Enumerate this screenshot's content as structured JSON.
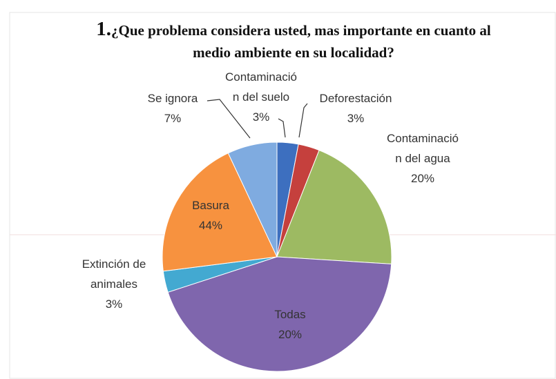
{
  "chart_data": {
    "type": "pie",
    "title_number": "1.",
    "title": "¿Que problema considera usted, mas importante en cuanto al medio ambiente en su localidad?",
    "categories": [
      "Contaminación del suelo",
      "Deforestación",
      "Contaminación del agua",
      "Basura",
      "Extinción de animales",
      "Todas",
      "Se ignora"
    ],
    "values": [
      3,
      3,
      20,
      44,
      3,
      20,
      7
    ],
    "value_labels": [
      "3%",
      "3%",
      "20%",
      "44%",
      "3%",
      "20%",
      "7%"
    ],
    "colors": [
      "#3d6fbf",
      "#c5403d",
      "#9dba62",
      "#7f66ad",
      "#43a9d1",
      "#f7923f",
      "#7fabe0"
    ]
  }
}
